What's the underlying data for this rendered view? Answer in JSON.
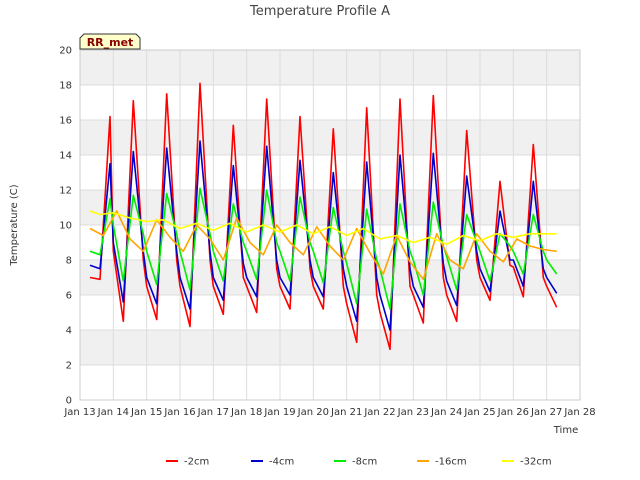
{
  "chart_data": {
    "type": "line",
    "title": "Temperature Profile A",
    "xlabel": "Time",
    "ylabel": "Temperature (C)",
    "badge": "RR_met",
    "xlim": [
      13,
      28
    ],
    "ylim": [
      0,
      20
    ],
    "yticks": [
      0,
      2,
      4,
      6,
      8,
      10,
      12,
      14,
      16,
      18,
      20
    ],
    "xticks": [
      {
        "v": 13,
        "label": "Jan 13"
      },
      {
        "v": 14,
        "label": "Jan 14"
      },
      {
        "v": 15,
        "label": "Jan 15"
      },
      {
        "v": 16,
        "label": "Jan 16"
      },
      {
        "v": 17,
        "label": "Jan 17"
      },
      {
        "v": 18,
        "label": "Jan 18"
      },
      {
        "v": 19,
        "label": "Jan 19"
      },
      {
        "v": 20,
        "label": "Jan 20"
      },
      {
        "v": 21,
        "label": "Jan 21"
      },
      {
        "v": 22,
        "label": "Jan 22"
      },
      {
        "v": 23,
        "label": "Jan 23"
      },
      {
        "v": 24,
        "label": "Jan 24"
      },
      {
        "v": 25,
        "label": "Jan 25"
      },
      {
        "v": 26,
        "label": "Jan 26"
      },
      {
        "v": 27,
        "label": "Jan 27"
      },
      {
        "v": 28,
        "label": "Jan 28"
      }
    ],
    "grid": true,
    "legend_position": "bottom",
    "series": [
      {
        "name": "-2cm",
        "color": "#ff0000",
        "x": [
          13.3,
          13.6,
          13.9,
          14.0,
          14.3,
          14.6,
          14.9,
          15.0,
          15.3,
          15.6,
          15.9,
          16.0,
          16.3,
          16.6,
          16.9,
          17.0,
          17.3,
          17.6,
          17.9,
          18.0,
          18.3,
          18.6,
          18.9,
          19.0,
          19.3,
          19.6,
          19.9,
          20.0,
          20.3,
          20.6,
          20.9,
          21.0,
          21.3,
          21.6,
          21.9,
          22.0,
          22.3,
          22.6,
          22.9,
          23.0,
          23.3,
          23.6,
          23.9,
          24.0,
          24.3,
          24.6,
          24.9,
          25.0,
          25.3,
          25.6,
          25.9,
          26.0,
          26.3,
          26.6,
          26.9,
          27.0,
          27.3
        ],
        "y": [
          7.0,
          6.9,
          16.2,
          8.5,
          4.5,
          17.1,
          8.0,
          6.5,
          4.6,
          17.5,
          8.0,
          6.5,
          4.2,
          18.1,
          8.0,
          6.5,
          4.9,
          15.7,
          7.0,
          6.5,
          5.0,
          17.2,
          7.5,
          6.5,
          5.2,
          16.2,
          7.5,
          6.5,
          5.2,
          15.5,
          6.5,
          5.5,
          3.3,
          16.7,
          6.0,
          5.0,
          2.9,
          17.2,
          6.5,
          6.0,
          4.4,
          17.4,
          7.0,
          6.0,
          4.5,
          15.4,
          8.0,
          7.0,
          5.7,
          12.5,
          7.7,
          7.6,
          5.9,
          14.6,
          7.0,
          6.5,
          5.3
        ]
      },
      {
        "name": "-4cm",
        "color": "#0000cc",
        "x": [
          13.3,
          13.6,
          13.9,
          14.0,
          14.3,
          14.6,
          14.9,
          15.0,
          15.3,
          15.6,
          15.9,
          16.0,
          16.3,
          16.6,
          16.9,
          17.0,
          17.3,
          17.6,
          17.9,
          18.0,
          18.3,
          18.6,
          18.9,
          19.0,
          19.3,
          19.6,
          19.9,
          20.0,
          20.3,
          20.6,
          20.9,
          21.0,
          21.3,
          21.6,
          21.9,
          22.0,
          22.3,
          22.6,
          22.9,
          23.0,
          23.3,
          23.6,
          23.9,
          24.0,
          24.3,
          24.6,
          24.9,
          25.0,
          25.3,
          25.6,
          25.9,
          26.0,
          26.3,
          26.6,
          26.9,
          27.0,
          27.3
        ],
        "y": [
          7.7,
          7.5,
          13.5,
          9.0,
          5.6,
          14.2,
          8.5,
          7.0,
          5.5,
          14.4,
          8.5,
          7.0,
          5.2,
          14.8,
          8.5,
          7.0,
          5.7,
          13.4,
          7.8,
          7.0,
          5.9,
          14.5,
          8.0,
          7.0,
          6.0,
          13.7,
          8.0,
          7.0,
          5.9,
          13.0,
          7.5,
          6.5,
          4.5,
          13.6,
          7.0,
          6.0,
          4.0,
          14.0,
          7.5,
          6.5,
          5.3,
          14.1,
          7.8,
          6.8,
          5.4,
          12.8,
          8.5,
          7.5,
          6.2,
          10.8,
          8.0,
          8.0,
          6.5,
          12.5,
          7.5,
          7.0,
          6.1
        ]
      },
      {
        "name": "-8cm",
        "color": "#00ee00",
        "x": [
          13.3,
          13.6,
          13.9,
          14.0,
          14.3,
          14.6,
          14.9,
          15.0,
          15.3,
          15.6,
          15.9,
          16.0,
          16.3,
          16.6,
          16.9,
          17.0,
          17.3,
          17.6,
          17.9,
          18.0,
          18.3,
          18.6,
          18.9,
          19.0,
          19.3,
          19.6,
          19.9,
          20.0,
          20.3,
          20.6,
          20.9,
          21.0,
          21.3,
          21.6,
          21.9,
          22.0,
          22.3,
          22.6,
          22.9,
          23.0,
          23.3,
          23.6,
          23.9,
          24.0,
          24.3,
          24.6,
          24.9,
          25.0,
          25.3,
          25.6,
          25.9,
          26.0,
          26.3,
          26.6,
          26.9,
          27.0,
          27.3
        ],
        "y": [
          8.5,
          8.3,
          11.5,
          10.0,
          6.8,
          11.7,
          9.5,
          8.5,
          6.6,
          11.8,
          9.5,
          8.5,
          6.3,
          12.1,
          9.5,
          8.5,
          6.8,
          11.2,
          9.0,
          8.5,
          6.9,
          12.0,
          9.0,
          8.5,
          6.8,
          11.6,
          9.0,
          8.5,
          6.7,
          11.0,
          8.5,
          7.8,
          5.5,
          10.9,
          8.0,
          7.5,
          5.2,
          11.2,
          8.5,
          8.0,
          6.0,
          11.3,
          8.8,
          8.2,
          6.3,
          10.6,
          9.0,
          8.5,
          6.8,
          9.5,
          8.8,
          8.5,
          7.2,
          10.6,
          8.5,
          8.0,
          7.2
        ]
      },
      {
        "name": "-16cm",
        "color": "#ffa500",
        "x": [
          13.3,
          13.7,
          14.1,
          14.5,
          14.9,
          15.3,
          15.7,
          16.1,
          16.5,
          16.9,
          17.3,
          17.7,
          18.1,
          18.5,
          18.9,
          19.3,
          19.7,
          20.1,
          20.5,
          20.9,
          21.3,
          21.7,
          22.1,
          22.5,
          22.9,
          23.3,
          23.7,
          24.1,
          24.5,
          24.9,
          25.3,
          25.7,
          26.1,
          26.5,
          26.9,
          27.3
        ],
        "y": [
          9.8,
          9.4,
          10.8,
          9.2,
          8.5,
          10.3,
          9.3,
          8.5,
          10.0,
          9.2,
          8.0,
          10.4,
          9.0,
          8.3,
          10.0,
          9.0,
          8.3,
          9.9,
          8.8,
          8.0,
          9.8,
          8.4,
          7.2,
          9.4,
          7.9,
          6.9,
          9.5,
          8.0,
          7.5,
          9.5,
          8.5,
          7.9,
          9.2,
          8.8,
          8.6,
          8.5
        ]
      },
      {
        "name": "-32cm",
        "color": "#ffff00",
        "x": [
          13.3,
          13.6,
          14.0,
          14.5,
          15.0,
          15.5,
          16.0,
          16.5,
          17.0,
          17.5,
          18.0,
          18.5,
          19.0,
          19.5,
          20.0,
          20.5,
          21.0,
          21.5,
          22.0,
          22.5,
          23.0,
          23.5,
          24.0,
          24.5,
          25.0,
          25.5,
          26.0,
          26.5,
          27.0,
          27.3
        ],
        "y": [
          10.8,
          10.6,
          10.7,
          10.4,
          10.2,
          10.3,
          9.8,
          10.1,
          9.7,
          10.1,
          9.6,
          10.0,
          9.6,
          10.0,
          9.5,
          9.9,
          9.4,
          9.8,
          9.2,
          9.4,
          9.0,
          9.3,
          8.9,
          9.4,
          9.1,
          9.5,
          9.3,
          9.5,
          9.5,
          9.5
        ]
      }
    ]
  }
}
